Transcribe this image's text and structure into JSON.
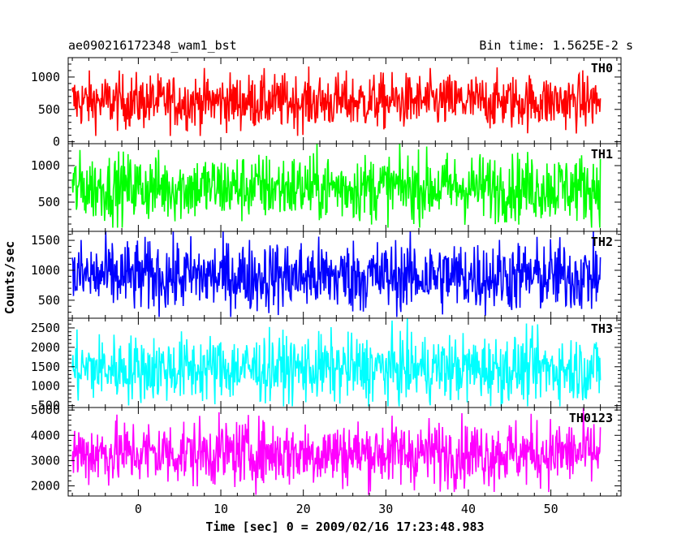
{
  "chart_data": {
    "type": "line",
    "title_left": "ae090216172348_wam1_bst",
    "title_right": "Bin time: 1.5625E-2 s",
    "xlabel": "Time [sec] 0 = 2009/02/16 17:23:48.983",
    "ylabel": "Counts/sec",
    "xlim": [
      -8.5,
      58.5
    ],
    "x_data_range": [
      -8,
      56
    ],
    "x_ticks": [
      0,
      10,
      20,
      30,
      40,
      50
    ],
    "x_tick_labels": [
      "0",
      "10",
      "20",
      "30",
      "40",
      "50"
    ],
    "bin_time_s": 0.015625,
    "panels": [
      {
        "name": "TH0",
        "color": "#ff0000",
        "ylim": [
          -30,
          1300
        ],
        "y_ticks": [
          0,
          500,
          1000
        ],
        "y_tick_labels": [
          "0",
          "500",
          "1000"
        ],
        "mean": 620,
        "noise": 210,
        "y_min_clip": 90,
        "y_max_clip": 1300
      },
      {
        "name": "TH1",
        "color": "#00ff00",
        "ylim": [
          100,
          1300
        ],
        "y_ticks": [
          500,
          1000
        ],
        "y_tick_labels": [
          "500",
          "1000"
        ],
        "mean": 700,
        "noise": 230,
        "y_min_clip": 150,
        "y_max_clip": 1300
      },
      {
        "name": "TH2",
        "color": "#0000ff",
        "ylim": [
          200,
          1650
        ],
        "y_ticks": [
          500,
          1000,
          1500
        ],
        "y_tick_labels": [
          "500",
          "1000",
          "1500"
        ],
        "mean": 900,
        "noise": 300,
        "y_min_clip": 220,
        "y_max_clip": 1650
      },
      {
        "name": "TH3",
        "color": "#00ffff",
        "ylim": [
          450,
          2750
        ],
        "y_ticks": [
          500,
          1000,
          1500,
          2000,
          2500
        ],
        "y_tick_labels": [
          "500",
          "1000",
          "1500",
          "2000",
          "2500"
        ],
        "mean": 1450,
        "noise": 430,
        "y_min_clip": 480,
        "y_max_clip": 2750
      },
      {
        "name": "TH0123",
        "color": "#ff00ff",
        "ylim": [
          1600,
          5100
        ],
        "y_ticks": [
          2000,
          3000,
          4000,
          5000
        ],
        "y_tick_labels": [
          "2000",
          "3000",
          "4000",
          "5000"
        ],
        "mean": 3300,
        "noise": 650,
        "y_min_clip": 1650,
        "y_max_clip": 5100
      }
    ]
  }
}
